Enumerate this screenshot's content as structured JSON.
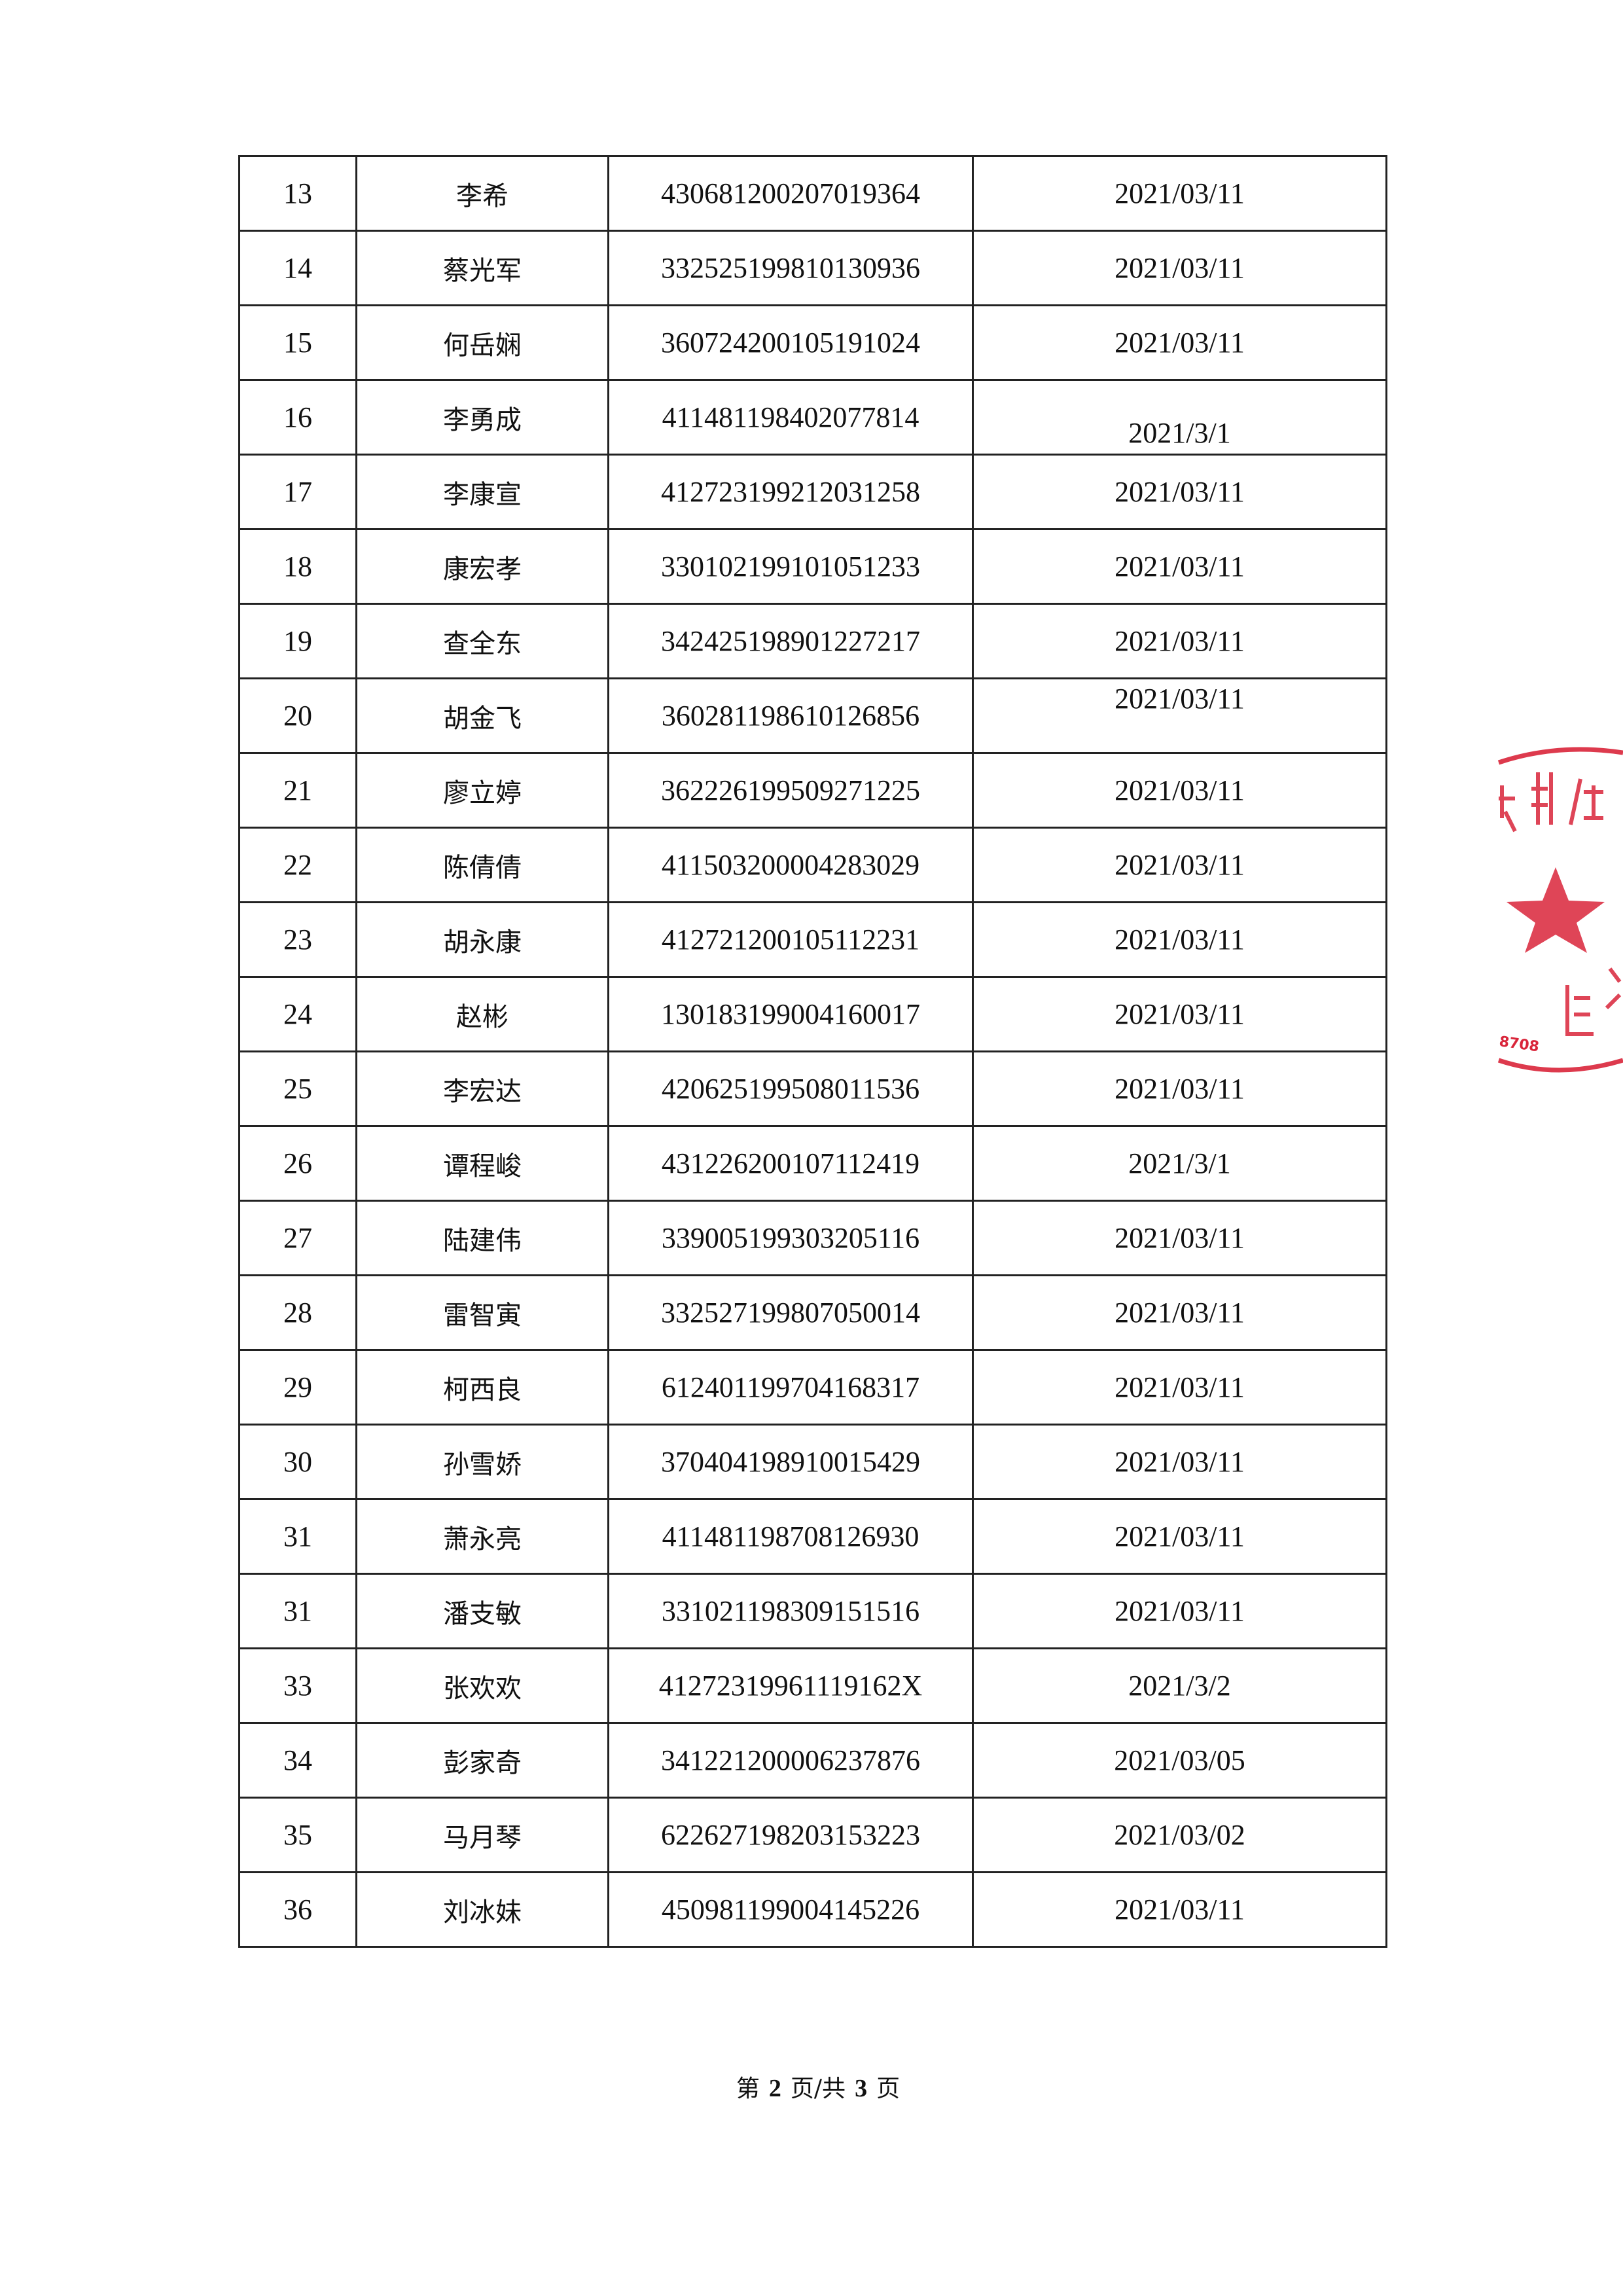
{
  "rows": [
    {
      "no": "13",
      "name": "李希",
      "id": "430681200207019364",
      "date": "2021/03/11"
    },
    {
      "no": "14",
      "name": "蔡光军",
      "id": "332525199810130936",
      "date": "2021/03/11"
    },
    {
      "no": "15",
      "name": "何岳娴",
      "id": "360724200105191024",
      "date": "2021/03/11"
    },
    {
      "no": "16",
      "name": "李勇成",
      "id": "411481198402077814",
      "date": "2021/3/1"
    },
    {
      "no": "17",
      "name": "李康宣",
      "id": "412723199212031258",
      "date": "2021/03/11"
    },
    {
      "no": "18",
      "name": "康宏孝",
      "id": "330102199101051233",
      "date": "2021/03/11"
    },
    {
      "no": "19",
      "name": "查全东",
      "id": "342425198901227217",
      "date": "2021/03/11"
    },
    {
      "no": "20",
      "name": "胡金飞",
      "id": "360281198610126856",
      "date": "2021/03/11"
    },
    {
      "no": "21",
      "name": "廖立婷",
      "id": "362226199509271225",
      "date": "2021/03/11"
    },
    {
      "no": "22",
      "name": "陈倩倩",
      "id": "411503200004283029",
      "date": "2021/03/11"
    },
    {
      "no": "23",
      "name": "胡永康",
      "id": "412721200105112231",
      "date": "2021/03/11"
    },
    {
      "no": "24",
      "name": "赵彬",
      "id": "130183199004160017",
      "date": "2021/03/11"
    },
    {
      "no": "25",
      "name": "李宏达",
      "id": "420625199508011536",
      "date": "2021/03/11"
    },
    {
      "no": "26",
      "name": "谭程峻",
      "id": "431226200107112419",
      "date": "2021/3/1"
    },
    {
      "no": "27",
      "name": "陆建伟",
      "id": "339005199303205116",
      "date": "2021/03/11"
    },
    {
      "no": "28",
      "name": "雷智寅",
      "id": "332527199807050014",
      "date": "2021/03/11"
    },
    {
      "no": "29",
      "name": "柯西良",
      "id": "612401199704168317",
      "date": "2021/03/11"
    },
    {
      "no": "30",
      "name": "孙雪娇",
      "id": "370404198910015429",
      "date": "2021/03/11"
    },
    {
      "no": "31",
      "name": "萧永亮",
      "id": "411481198708126930",
      "date": "2021/03/11"
    },
    {
      "no": "31",
      "name": "潘支敏",
      "id": "331021198309151516",
      "date": "2021/03/11"
    },
    {
      "no": "33",
      "name": "张欢欢",
      "id": "41272319961119162X",
      "date": "2021/3/2"
    },
    {
      "no": "34",
      "name": "彭家奇",
      "id": "341221200006237876",
      "date": "2021/03/05"
    },
    {
      "no": "35",
      "name": "马月琴",
      "id": "622627198203153223",
      "date": "2021/03/02"
    },
    {
      "no": "36",
      "name": "刘冰妹",
      "id": "450981199004145226",
      "date": "2021/03/11"
    }
  ],
  "footer": {
    "prefix": "第",
    "current": "2",
    "middle": "页/共",
    "total": "3",
    "suffix": "页"
  },
  "stamp": {
    "text_top": "瑞特供",
    "text_bottom": "回",
    "code": "8708",
    "color": "#d9253a"
  }
}
